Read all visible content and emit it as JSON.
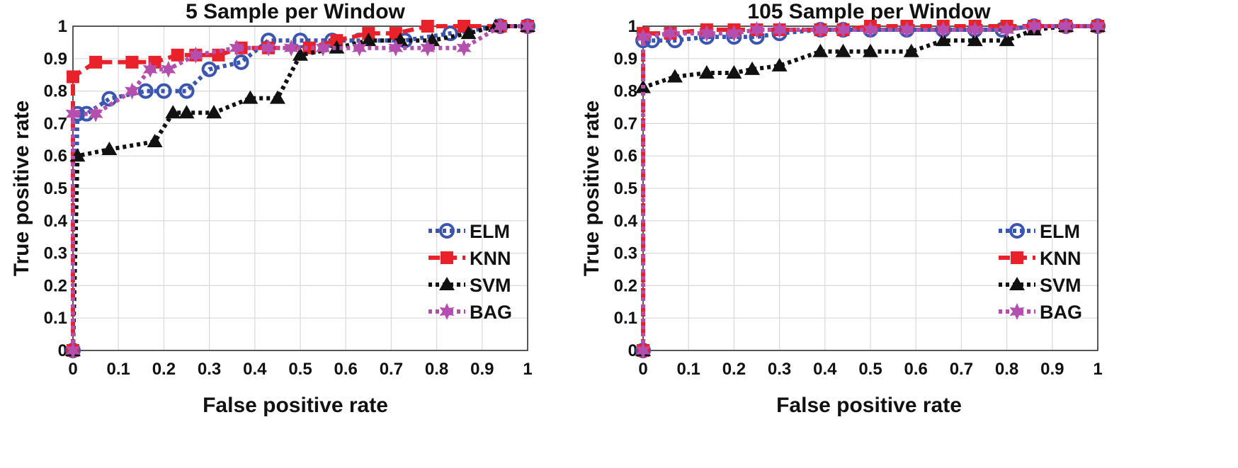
{
  "chart_data": [
    {
      "type": "line",
      "title": "5 Sample per Window",
      "xlabel": "False positive rate",
      "ylabel": "True positive rate",
      "xlim": [
        0,
        1
      ],
      "ylim": [
        0,
        1
      ],
      "grid": true,
      "legend_position": "bottom-right",
      "xticks": [
        "0",
        "0.1",
        "0.2",
        "0.3",
        "0.4",
        "0.5",
        "0.6",
        "0.7",
        "0.8",
        "0.9",
        "1"
      ],
      "yticks": [
        "0",
        "0.1",
        "0.2",
        "0.3",
        "0.4",
        "0.5",
        "0.6",
        "0.7",
        "0.8",
        "0.9",
        "1"
      ],
      "series": [
        {
          "name": "ELM",
          "color": "#3a56b0",
          "marker": "circle",
          "dash": "dot",
          "x": [
            0,
            0.01,
            0.03,
            0.08,
            0.16,
            0.2,
            0.25,
            0.3,
            0.37,
            0.43,
            0.5,
            0.57,
            0.63,
            0.73,
            0.83,
            0.94,
            1
          ],
          "y": [
            0,
            0.73,
            0.73,
            0.776,
            0.8,
            0.8,
            0.8,
            0.867,
            0.889,
            0.956,
            0.956,
            0.956,
            0.956,
            0.956,
            0.978,
            1,
            1
          ]
        },
        {
          "name": "KNN",
          "color": "#e8212a",
          "marker": "square",
          "dash": "dash",
          "x": [
            0,
            0,
            0.05,
            0.13,
            0.18,
            0.23,
            0.27,
            0.32,
            0.37,
            0.43,
            0.52,
            0.58,
            0.65,
            0.71,
            0.78,
            0.86,
            0.94,
            1
          ],
          "y": [
            0,
            0.844,
            0.889,
            0.889,
            0.889,
            0.911,
            0.911,
            0.911,
            0.933,
            0.933,
            0.933,
            0.956,
            0.978,
            0.978,
            1,
            1,
            1,
            1
          ]
        },
        {
          "name": "SVM",
          "color": "#111111",
          "marker": "triangle",
          "dash": "dot",
          "x": [
            0,
            0.01,
            0.08,
            0.18,
            0.22,
            0.25,
            0.31,
            0.39,
            0.45,
            0.5,
            0.58,
            0.65,
            0.72,
            0.79,
            0.87,
            0.93,
            1
          ],
          "y": [
            0,
            0.6,
            0.62,
            0.644,
            0.733,
            0.733,
            0.733,
            0.778,
            0.778,
            0.911,
            0.933,
            0.956,
            0.956,
            0.956,
            0.978,
            1,
            1
          ]
        },
        {
          "name": "BAG",
          "color": "#b44fb0",
          "marker": "star",
          "dash": "dot",
          "x": [
            0,
            0,
            0.05,
            0.13,
            0.17,
            0.21,
            0.27,
            0.36,
            0.43,
            0.48,
            0.55,
            0.63,
            0.71,
            0.78,
            0.86,
            0.94,
            1
          ],
          "y": [
            0,
            0.73,
            0.73,
            0.8,
            0.867,
            0.867,
            0.911,
            0.933,
            0.933,
            0.933,
            0.933,
            0.933,
            0.933,
            0.933,
            0.933,
            1,
            1
          ]
        }
      ]
    },
    {
      "type": "line",
      "title": "105 Sample per Window",
      "xlabel": "False positive rate",
      "ylabel": "True positive rate",
      "xlim": [
        0,
        1
      ],
      "ylim": [
        0,
        1
      ],
      "grid": true,
      "legend_position": "bottom-right",
      "xticks": [
        "0",
        "0.1",
        "0.2",
        "0.3",
        "0.4",
        "0.5",
        "0.6",
        "0.7",
        "0.8",
        "0.9",
        "1"
      ],
      "yticks": [
        "0",
        "0.1",
        "0.2",
        "0.3",
        "0.4",
        "0.5",
        "0.6",
        "0.7",
        "0.8",
        "0.9",
        "1"
      ],
      "series": [
        {
          "name": "ELM",
          "color": "#3a56b0",
          "marker": "circle",
          "dash": "dot",
          "x": [
            0,
            0,
            0.02,
            0.07,
            0.14,
            0.2,
            0.25,
            0.3,
            0.39,
            0.44,
            0.5,
            0.58,
            0.66,
            0.73,
            0.79,
            0.86,
            0.93,
            1
          ],
          "y": [
            0,
            0.956,
            0.956,
            0.956,
            0.967,
            0.967,
            0.967,
            0.978,
            0.989,
            0.989,
            0.989,
            0.989,
            0.989,
            0.989,
            0.989,
            1,
            1,
            1
          ]
        },
        {
          "name": "KNN",
          "color": "#e8212a",
          "marker": "square",
          "dash": "dash",
          "x": [
            0,
            0,
            0.06,
            0.14,
            0.2,
            0.25,
            0.3,
            0.39,
            0.44,
            0.5,
            0.58,
            0.66,
            0.73,
            0.8,
            0.86,
            0.93,
            1
          ],
          "y": [
            0,
            0.978,
            0.978,
            0.989,
            0.989,
            0.989,
            0.989,
            0.989,
            0.989,
            1,
            1,
            1,
            1,
            1,
            1,
            1,
            1
          ]
        },
        {
          "name": "SVM",
          "color": "#111111",
          "marker": "triangle",
          "dash": "dot",
          "x": [
            0,
            0,
            0.07,
            0.14,
            0.2,
            0.24,
            0.3,
            0.39,
            0.44,
            0.5,
            0.59,
            0.66,
            0.73,
            0.8,
            0.86,
            0.93,
            1
          ],
          "y": [
            0,
            0.811,
            0.844,
            0.856,
            0.856,
            0.867,
            0.878,
            0.922,
            0.922,
            0.922,
            0.922,
            0.956,
            0.956,
            0.956,
            0.989,
            1,
            1
          ]
        },
        {
          "name": "BAG",
          "color": "#b44fb0",
          "marker": "star",
          "dash": "dot",
          "x": [
            0,
            0,
            0.06,
            0.14,
            0.2,
            0.25,
            0.3,
            0.39,
            0.44,
            0.5,
            0.58,
            0.66,
            0.73,
            0.8,
            0.86,
            0.93,
            1
          ],
          "y": [
            0,
            0.967,
            0.978,
            0.978,
            0.978,
            0.989,
            0.989,
            0.989,
            0.989,
            0.989,
            0.989,
            0.989,
            0.989,
            0.989,
            1,
            1,
            1
          ]
        }
      ]
    }
  ]
}
